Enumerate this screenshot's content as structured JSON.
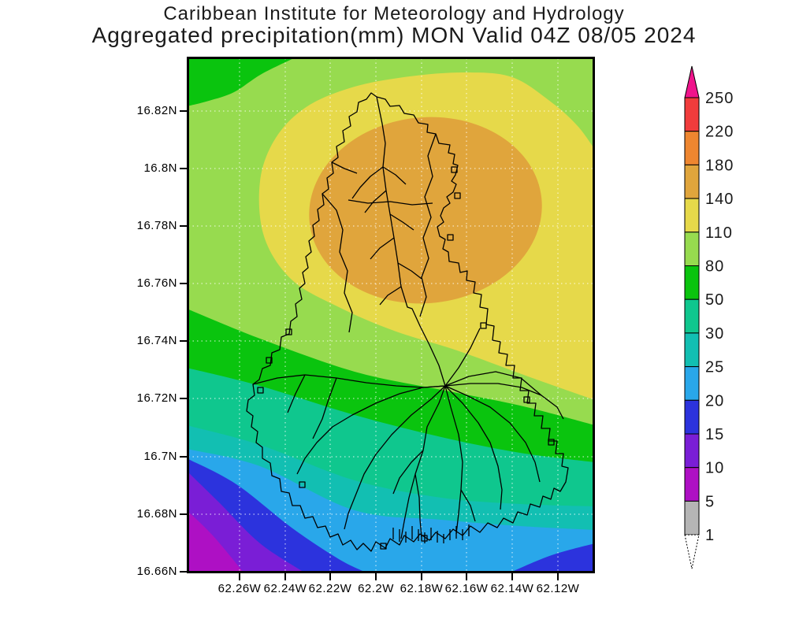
{
  "title": {
    "line1": "Caribbean Institute for Meteorology and Hydrology",
    "line2": "Aggregated precipitation(mm) MON Valid 04Z 08/05 2024"
  },
  "axes": {
    "lat_labels": [
      "16.82N",
      "16.8N",
      "16.78N",
      "16.76N",
      "16.74N",
      "16.72N",
      "16.7N",
      "16.68N",
      "16.66N"
    ],
    "lon_labels": [
      "62.26W",
      "62.24W",
      "62.22W",
      "62.2W",
      "62.18W",
      "62.16W",
      "62.14W",
      "62.12W"
    ]
  },
  "colorbar": {
    "labels": [
      "250",
      "220",
      "180",
      "140",
      "110",
      "80",
      "50",
      "30",
      "25",
      "20",
      "15",
      "10",
      "5",
      "1"
    ],
    "segment_colors_top_to_bottom": [
      "#F13C3C",
      "#EE8630",
      "#E0A53C",
      "#E6D94A",
      "#97DB4F",
      "#0AC40E",
      "#0FC78E",
      "#12BFB2",
      "#29A7EA",
      "#2C33DD",
      "#7A1ED6",
      "#AE10C4",
      "#B5B5B5"
    ],
    "overflow_arrow_color": "#F0148C",
    "underflow_arrow_color": "#FFFFFF"
  },
  "chart_data": {
    "type": "heatmap",
    "subtype": "filled-contour precipitation map over Montserrat with watershed/stream network overlay",
    "title": "Aggregated precipitation(mm) MON Valid 04Z 08/05 2024",
    "source": "Caribbean Institute for Meteorology and Hydrology",
    "valid_time": "MON 04Z 08/05 2024",
    "units": "mm",
    "x_tick_labels": [
      "62.26W",
      "62.24W",
      "62.22W",
      "62.2W",
      "62.18W",
      "62.16W",
      "62.14W",
      "62.12W"
    ],
    "y_tick_labels": [
      "16.82N",
      "16.8N",
      "16.78N",
      "16.76N",
      "16.74N",
      "16.72N",
      "16.7N",
      "16.68N",
      "16.66N"
    ],
    "x_range": [
      -62.283,
      -62.1
    ],
    "y_range": [
      16.659,
      16.838
    ],
    "grid": "white dotted graticule at labeled ticks",
    "legend_position": "right vertical colorbar with overflow arrows",
    "contour_levels_mm": [
      1,
      5,
      10,
      15,
      20,
      25,
      30,
      50,
      80,
      110,
      140,
      180,
      220,
      250
    ],
    "level_colors_low_to_high": [
      "#FFFFFF",
      "#B5B5B5",
      "#AE10C4",
      "#7A1ED6",
      "#2C33DD",
      "#29A7EA",
      "#12BFB2",
      "#0FC78E",
      "#0AC40E",
      "#97DB4F",
      "#E6D94A",
      "#E0A53C",
      "#EE8630",
      "#F13C3C",
      "#F0148C"
    ],
    "field_summary": [
      {
        "band_mm": "140-180",
        "where": "oval maximum centered over the northern half of the island near 16.79N 62.19W"
      },
      {
        "band_mm": "110-140",
        "where": "broad dome covering the upper-center and entire eastern side of the map"
      },
      {
        "band_mm": "80-110",
        "where": "band along the top edge and down the western side"
      },
      {
        "band_mm": "50-80",
        "where": "top-left corner triangle and a band near 16.73N-16.75N"
      },
      {
        "band_mm": "30-50",
        "where": "band near 16.71N-16.73N crossing the southern island"
      },
      {
        "band_mm": "25-30",
        "where": "narrow band just above 16.70N"
      },
      {
        "band_mm": "20-25",
        "where": "wide band across the southern map and most of the bottom-right"
      },
      {
        "band_mm": "15-20",
        "where": "southwest band and a small wedge in the bottom-right corner"
      },
      {
        "band_mm": "10-15",
        "where": "lower-left corner band"
      },
      {
        "band_mm": "5-10",
        "where": "minimum pocket in the extreme bottom-left corner"
      }
    ]
  }
}
